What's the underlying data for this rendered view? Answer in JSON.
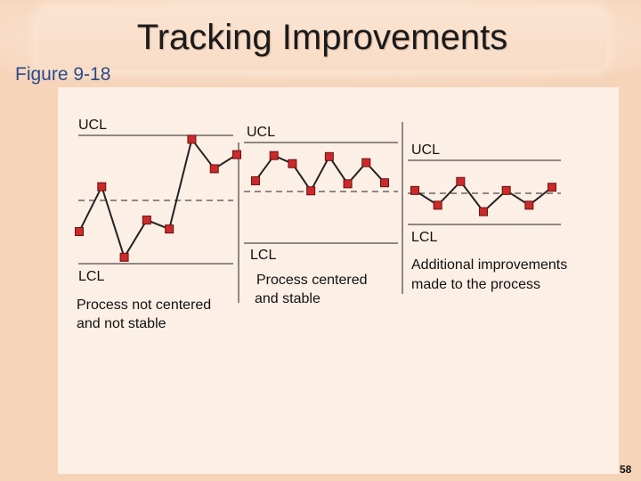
{
  "title": "Tracking Improvements",
  "figure_label": "Figure 9-18",
  "page_number": "58",
  "colors": {
    "point_fill": "#cc2a2a",
    "point_stroke": "#6a1010",
    "line": "#222222",
    "background": "#f6d4ba",
    "panel": "#fcefe6"
  },
  "panels": [
    {
      "ucl_label": "UCL",
      "lcl_label": "LCL",
      "caption_line1": "Process not centered",
      "caption_line2": "and not stable",
      "points": [
        0.25,
        0.6,
        0.05,
        0.34,
        0.27,
        0.97,
        0.74,
        0.85
      ]
    },
    {
      "ucl_label": "UCL",
      "lcl_label": "LCL",
      "caption_line1": "Process centered",
      "caption_line2": "and stable",
      "points": [
        0.62,
        0.87,
        0.79,
        0.52,
        0.86,
        0.59,
        0.8,
        0.6
      ]
    },
    {
      "ucl_label": "UCL",
      "lcl_label": "LCL",
      "caption_line1": "Additional improvements",
      "caption_line2": "made to the process",
      "points": [
        0.53,
        0.3,
        0.67,
        0.2,
        0.53,
        0.3,
        0.58
      ]
    }
  ]
}
